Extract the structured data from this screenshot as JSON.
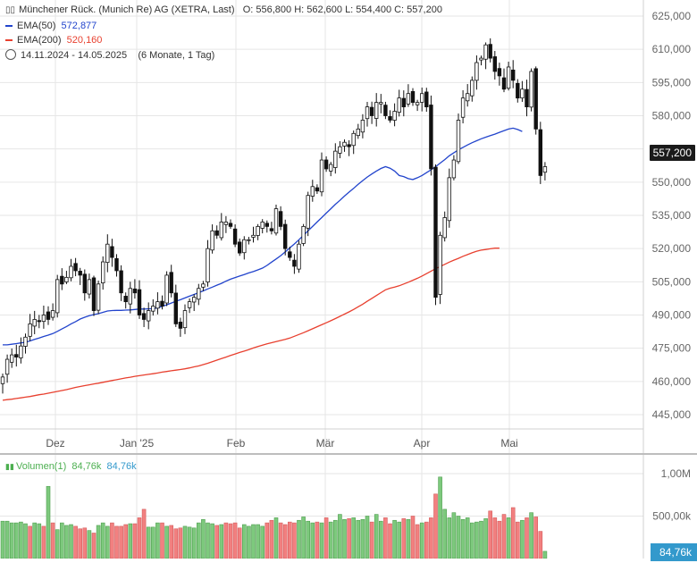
{
  "header": {
    "title": "Münchener Rück. (Munich Re) AG (XETRA, Last)",
    "ohlc": "O: 556,800  H: 562,600  L: 554,400  C: 557,200",
    "ema50_label": "EMA(50)",
    "ema50_value": "572,877",
    "ema200_label": "EMA(200)",
    "ema200_value": "520,160",
    "range": "14.11.2024 - 14.05.2025",
    "range_detail": "(6 Monate, 1 Tag)"
  },
  "volume_header": {
    "label": "Volumen(1)",
    "value1": "84,76k",
    "value2": "84,76k"
  },
  "badges": {
    "last_price": "557,200",
    "last_volume": "84,76k"
  },
  "colors": {
    "ema50": "#2244cc",
    "ema200": "#e8402f",
    "candle": "#111111",
    "vol_up": "#7dc97d",
    "vol_down": "#f28080",
    "grid": "#e6e6e6"
  },
  "chart_data": [
    {
      "type": "candlestick",
      "title": "Münchener Rück. (Munich Re) AG (XETRA, Last)",
      "xlabel": "",
      "ylabel": "",
      "x_tick_labels": [
        "Dez",
        "Jan '25",
        "Feb",
        "Mär",
        "Apr",
        "Mai"
      ],
      "y_ticks": [
        "445,000",
        "460,000",
        "475,000",
        "490,000",
        "505,000",
        "520,000",
        "535,000",
        "550,000",
        "565,000",
        "580,000",
        "595,000",
        "610,000",
        "625,000"
      ],
      "ylim": [
        440,
        628
      ],
      "grid": true,
      "close": [
        462,
        470,
        472,
        471,
        476,
        480,
        486,
        488,
        487,
        490,
        488,
        492,
        506,
        504,
        507,
        512,
        510,
        508,
        500,
        506,
        492,
        504,
        514,
        522,
        516,
        510,
        500,
        496,
        502,
        500,
        490,
        488,
        492,
        494,
        496,
        494,
        508,
        500,
        486,
        484,
        492,
        496,
        498,
        502,
        504,
        520,
        528,
        526,
        532,
        532,
        530,
        522,
        518,
        524,
        524,
        526,
        530,
        532,
        530,
        528,
        538,
        530,
        520,
        516,
        512,
        522,
        530,
        544,
        548,
        546,
        560,
        556,
        558,
        564,
        566,
        568,
        566,
        572,
        574,
        578,
        584,
        580,
        586,
        586,
        580,
        578,
        582,
        588,
        584,
        590,
        586,
        586,
        590,
        584,
        556,
        498,
        526,
        534,
        552,
        560,
        578,
        588,
        590,
        596,
        604,
        606,
        612,
        606,
        600,
        598,
        592,
        602,
        596,
        588,
        592,
        584,
        600,
        574,
        553,
        557
      ],
      "ema50": [
        476.5,
        476.5,
        476.8,
        477.1,
        477.4,
        477.7,
        478.3,
        479.0,
        479.6,
        480.3,
        480.9,
        481.6,
        482.6,
        483.7,
        484.8,
        486.0,
        487.0,
        488.2,
        489.0,
        489.7,
        490.2,
        490.6,
        491.2,
        491.8,
        492.0,
        492.1,
        492.1,
        492.2,
        492.3,
        492.5,
        492.7,
        492.7,
        492.8,
        492.9,
        493.2,
        493.9,
        494.6,
        495.4,
        496.2,
        496.9,
        497.7,
        498.5,
        499.3,
        500.1,
        500.9,
        501.8,
        502.6,
        503.5,
        504.3,
        505.3,
        506.2,
        506.9,
        507.6,
        508.3,
        509.0,
        509.6,
        510.4,
        511.2,
        512.4,
        513.9,
        515.3,
        516.8,
        518.5,
        520.3,
        522.1,
        524.0,
        526.0,
        528.0,
        530.0,
        532.0,
        534.0,
        536.0,
        538.0,
        540.0,
        541.8,
        543.7,
        545.5,
        547.2,
        549.0,
        550.7,
        552.3,
        553.7,
        555.0,
        556.2,
        557.0,
        556.3,
        555.0,
        553.0,
        552.5,
        551.6,
        551.2,
        552.0,
        553.0,
        554.3,
        555.6,
        557.0,
        558.6,
        560.2,
        561.9,
        563.3,
        564.6,
        565.7,
        566.8,
        567.8,
        568.7,
        569.6,
        570.3,
        571.0,
        571.7,
        572.5,
        573.2,
        574.0,
        574.4,
        573.8,
        572.9
      ],
      "ema200": [
        451.5,
        451.8,
        452.0,
        452.3,
        452.6,
        452.9,
        453.2,
        453.6,
        454.0,
        454.3,
        454.7,
        455.1,
        455.5,
        455.9,
        456.3,
        456.8,
        457.3,
        457.7,
        458.1,
        458.5,
        458.9,
        459.2,
        459.6,
        460.0,
        460.4,
        460.8,
        461.2,
        461.6,
        461.9,
        462.3,
        462.6,
        462.9,
        463.2,
        463.5,
        463.8,
        464.2,
        464.5,
        464.8,
        465.1,
        465.4,
        465.7,
        466.1,
        466.6,
        467.0,
        467.6,
        468.2,
        468.9,
        469.6,
        470.3,
        471.0,
        471.7,
        472.4,
        473.1,
        473.7,
        474.4,
        475.1,
        475.8,
        476.4,
        477.0,
        477.5,
        478.0,
        478.5,
        479.0,
        479.6,
        480.4,
        481.2,
        482.0,
        482.9,
        483.8,
        484.7,
        485.6,
        486.5,
        487.4,
        488.4,
        489.4,
        490.4,
        491.4,
        492.5,
        493.7,
        494.9,
        496.2,
        497.5,
        498.8,
        500.1,
        501.4,
        502.1,
        502.6,
        503.2,
        504.0,
        504.8,
        505.7,
        506.6,
        507.6,
        508.7,
        509.8,
        510.9,
        511.9,
        512.9,
        513.9,
        514.8,
        515.6,
        516.5,
        517.3,
        518.1,
        518.8,
        519.3,
        519.6,
        519.9,
        520.2,
        520.2
      ],
      "last_close": "557,200"
    },
    {
      "type": "bar",
      "title": "Volumen(1)",
      "y_ticks": [
        "500,00k",
        "1,00M"
      ],
      "ylim": [
        0,
        1100
      ],
      "values_k": [
        440,
        440,
        420,
        420,
        430,
        410,
        380,
        420,
        410,
        380,
        850,
        420,
        340,
        420,
        390,
        400,
        380,
        350,
        360,
        330,
        300,
        390,
        420,
        380,
        420,
        380,
        380,
        400,
        410,
        410,
        480,
        580,
        370,
        370,
        420,
        420,
        380,
        390,
        350,
        360,
        380,
        370,
        360,
        420,
        460,
        420,
        410,
        390,
        400,
        420,
        410,
        420,
        360,
        400,
        380,
        400,
        400,
        380,
        420,
        450,
        480,
        420,
        400,
        430,
        420,
        450,
        490,
        440,
        420,
        430,
        420,
        480,
        430,
        450,
        520,
        460,
        470,
        480,
        450,
        460,
        500,
        430,
        520,
        440,
        480,
        410,
        450,
        430,
        470,
        460,
        500,
        400,
        420,
        430,
        480,
        760,
        960,
        580,
        480,
        540,
        500,
        460,
        480,
        420,
        430,
        440,
        470,
        560,
        480,
        440,
        520,
        480,
        600,
        430,
        450,
        480,
        540,
        490,
        320,
        85
      ],
      "down": [
        false,
        false,
        false,
        false,
        false,
        false,
        true,
        false,
        false,
        true,
        false,
        true,
        false,
        false,
        false,
        false,
        true,
        true,
        true,
        false,
        true,
        false,
        false,
        false,
        true,
        true,
        true,
        true,
        false,
        true,
        true,
        true,
        false,
        false,
        false,
        true,
        false,
        true,
        true,
        true,
        false,
        false,
        false,
        false,
        false,
        false,
        false,
        true,
        false,
        true,
        true,
        true,
        true,
        false,
        false,
        false,
        false,
        false,
        true,
        true,
        false,
        true,
        true,
        true,
        true,
        false,
        false,
        false,
        false,
        true,
        false,
        true,
        false,
        false,
        false,
        false,
        true,
        false,
        false,
        false,
        false,
        true,
        false,
        false,
        true,
        true,
        false,
        false,
        true,
        false,
        true,
        true,
        false,
        true,
        true,
        true,
        false,
        false,
        false,
        false,
        false,
        false,
        false,
        false,
        false,
        false,
        false,
        true,
        true,
        true,
        true,
        false,
        true,
        true,
        false,
        true,
        false,
        true,
        true,
        false
      ],
      "last_value": "84,76k"
    }
  ]
}
